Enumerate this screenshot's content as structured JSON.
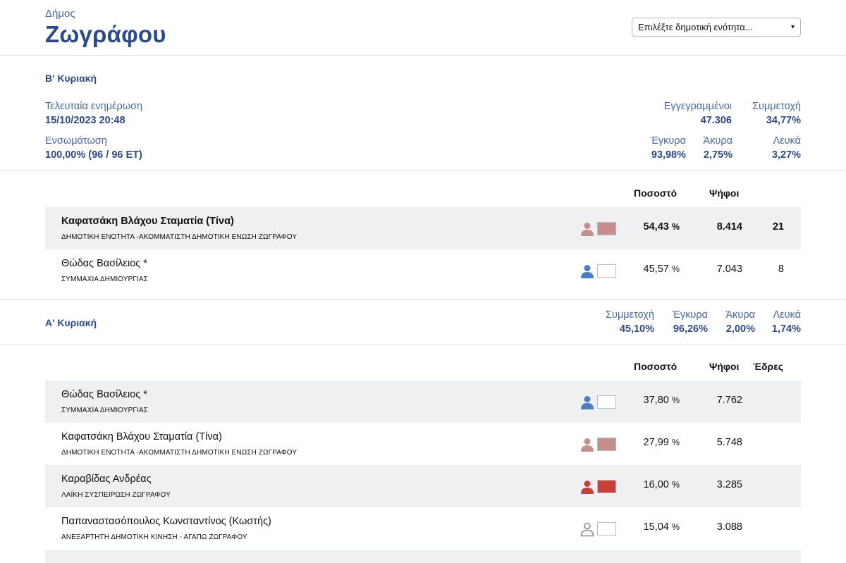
{
  "header": {
    "pre": "Δήμος",
    "title": "Ζωγράφου"
  },
  "select": {
    "placeholder": "Επιλέξτε δημοτική ενότητα..."
  },
  "round_b": {
    "label": "Β' Κυριακή",
    "last_update_label": "Τελευταία ενημέρωση",
    "last_update_value": "15/10/2023 20:48",
    "integration_label": "Ενσωμάτωση",
    "integration_value": "100,00% (96 / 96 ΕΤ)",
    "registered_label": "Εγγεγραμμένοι",
    "registered_value": "47.306",
    "turnout_label": "Συμμετοχή",
    "turnout_value": "34,77%",
    "valid_label": "Έγκυρα",
    "valid_value": "93,98%",
    "invalid_label": "Άκυρα",
    "invalid_value": "2,75%",
    "blank_label": "Λευκά",
    "blank_value": "3,27%",
    "col_percent": "Ποσοστό",
    "col_votes": "Ψήφοι",
    "candidates": [
      {
        "name": "Καφατσάκη Βλάχου Σταματία (Τίνα)",
        "party": "ΔΗΜΟΤΙΚΗ ΕΝΟΤΗΤΑ -ΑΚΟΜΜΑΤΙΣΤΗ ΔΗΜΟΤΙΚΗ ΕΝΩΣΗ ΖΩΓΡΑΦΟΥ",
        "percent": "54,43",
        "unit": "%",
        "votes": "8.414",
        "seats": "21",
        "icon": "person-icon",
        "person_color": "#c48f8b",
        "swatch_color": "#c48f8b",
        "lead": true
      },
      {
        "name": "Θώδας Βασίλειος *",
        "party": "ΣΥΜΜΑΧΙΑ ΔΗΜΙΟΥΡΓΙΑΣ",
        "percent": "45,57",
        "unit": "%",
        "votes": "7.043",
        "seats": "8",
        "icon": "person-icon",
        "person_color": "#4a7fc4",
        "swatch_color": "#ffffff",
        "lead": false
      }
    ]
  },
  "round_a": {
    "label": "Α' Κυριακή",
    "turnout_label": "Συμμετοχή",
    "turnout_value": "45,10%",
    "valid_label": "Έγκυρα",
    "valid_value": "96,26%",
    "invalid_label": "Άκυρα",
    "invalid_value": "2,00%",
    "blank_label": "Λευκά",
    "blank_value": "1,74%",
    "col_percent": "Ποσοστό",
    "col_votes": "Ψήφοι",
    "col_seats": "Έδρες",
    "candidates": [
      {
        "name": "Θώδας Βασίλειος *",
        "party": "ΣΥΜΜΑΧΙΑ ΔΗΜΙΟΥΡΓΙΑΣ",
        "percent": "37,80",
        "unit": "%",
        "votes": "7.762",
        "icon": "person-icon",
        "person_color": "#4a7fc4",
        "swatch_color": "#ffffff",
        "outline": false
      },
      {
        "name": "Καφατσάκη Βλάχου Σταματία (Τίνα)",
        "party": "ΔΗΜΟΤΙΚΗ ΕΝΟΤΗΤΑ -ΑΚΟΜΜΑΤΙΣΤΗ ΔΗΜΟΤΙΚΗ ΕΝΩΣΗ ΖΩΓΡΑΦΟΥ",
        "percent": "27,99",
        "unit": "%",
        "votes": "5.748",
        "icon": "person-icon",
        "person_color": "#c48f8b",
        "swatch_color": "#c48f8b",
        "outline": false
      },
      {
        "name": "Καραβίδας Ανδρέας",
        "party": "ΛΑΪΚΗ ΣΥΣΠΕΙΡΩΣΗ ΖΩΓΡΑΦΟΥ",
        "percent": "16,00",
        "unit": "%",
        "votes": "3.285",
        "icon": "person-icon",
        "person_color": "#c8403a",
        "swatch_color": "#c8403a",
        "outline": false
      },
      {
        "name": "Παπαναστασόπουλος Κωνσταντίνος (Κωστής)",
        "party": "ΑΝΕΞΑΡΤΗΤΗ ΔΗΜΟΤΙΚΗ ΚΙΝΗΣΗ - ΑΓΑΠΩ ΖΩΓΡΑΦΟΥ",
        "percent": "15,04",
        "unit": "%",
        "votes": "3.088",
        "icon": "person-outline-icon",
        "person_color": "#888888",
        "swatch_color": "#ffffff",
        "outline": true
      }
    ]
  }
}
